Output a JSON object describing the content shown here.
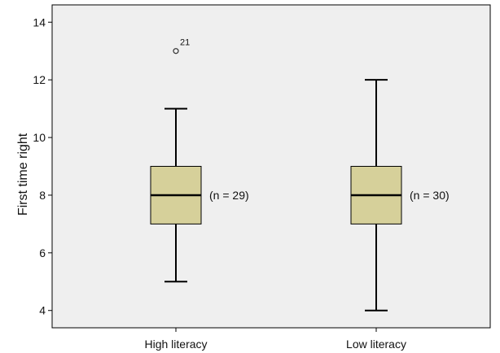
{
  "chart_data": {
    "type": "boxplot",
    "title": "",
    "xlabel": "",
    "ylabel": "First time right",
    "ylim": [
      3.4,
      14.6
    ],
    "yticks": [
      4,
      6,
      8,
      10,
      12,
      14
    ],
    "grid": false,
    "legend": "none",
    "categories": [
      "High literacy",
      "Low literacy"
    ],
    "boxes": [
      {
        "category": "High literacy",
        "whisker_low": 5,
        "q1": 7,
        "median": 8,
        "q3": 9,
        "whisker_high": 11,
        "n_label": "(n = 29)",
        "outliers": [
          {
            "value": 13,
            "label": "21"
          }
        ]
      },
      {
        "category": "Low literacy",
        "whisker_low": 4,
        "q1": 7,
        "median": 8,
        "q3": 9,
        "whisker_high": 12,
        "n_label": "(n = 30)",
        "outliers": []
      }
    ],
    "colors": {
      "plot_background": "#efefef",
      "box_fill": "#d6d09a",
      "stroke": "#000000"
    }
  }
}
